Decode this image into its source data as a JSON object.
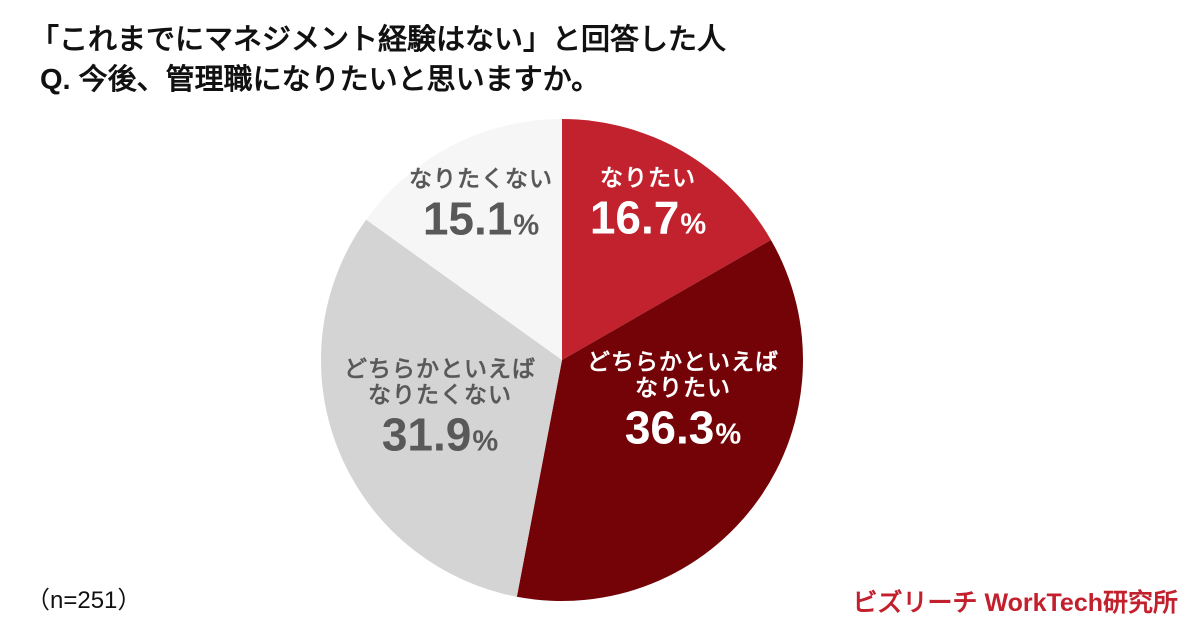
{
  "header": {
    "title_line1": "「これまでにマネジメント経験はない」と回答した人",
    "title_line2": "Q. 今後、管理職になりたいと思いますか。"
  },
  "footer": {
    "sample_size": "（n=251）",
    "brand": "ビズリーチ WorkTech研究所",
    "brand_color": "#C3202E"
  },
  "chart_data": {
    "type": "pie",
    "title": "Q. 今後、管理職になりたいと思いますか。",
    "subtitle": "「これまでにマネジメント経験はない」と回答した人",
    "sample_size": 251,
    "start_angle_deg": 0,
    "direction": "clockwise",
    "legend": "none (labels drawn on slices)",
    "unit": "%",
    "slices": [
      {
        "label": "なりたい",
        "value": 16.7,
        "display_value": "16.7",
        "unit": "%",
        "color": "#C2222E",
        "label_color": "#FFFFFF"
      },
      {
        "label": "どちらかといえば\nなりたい",
        "value": 36.3,
        "display_value": "36.3",
        "unit": "%",
        "color": "#730307",
        "label_color": "#FFFFFF"
      },
      {
        "label": "どちらかといえば\nなりたくない",
        "value": 31.9,
        "display_value": "31.9",
        "unit": "%",
        "color": "#D4D4D4",
        "label_color": "#595959"
      },
      {
        "label": "なりたくない",
        "value": 15.1,
        "display_value": "15.1",
        "unit": "%",
        "color": "#F6F6F6",
        "label_color": "#595959"
      }
    ]
  }
}
